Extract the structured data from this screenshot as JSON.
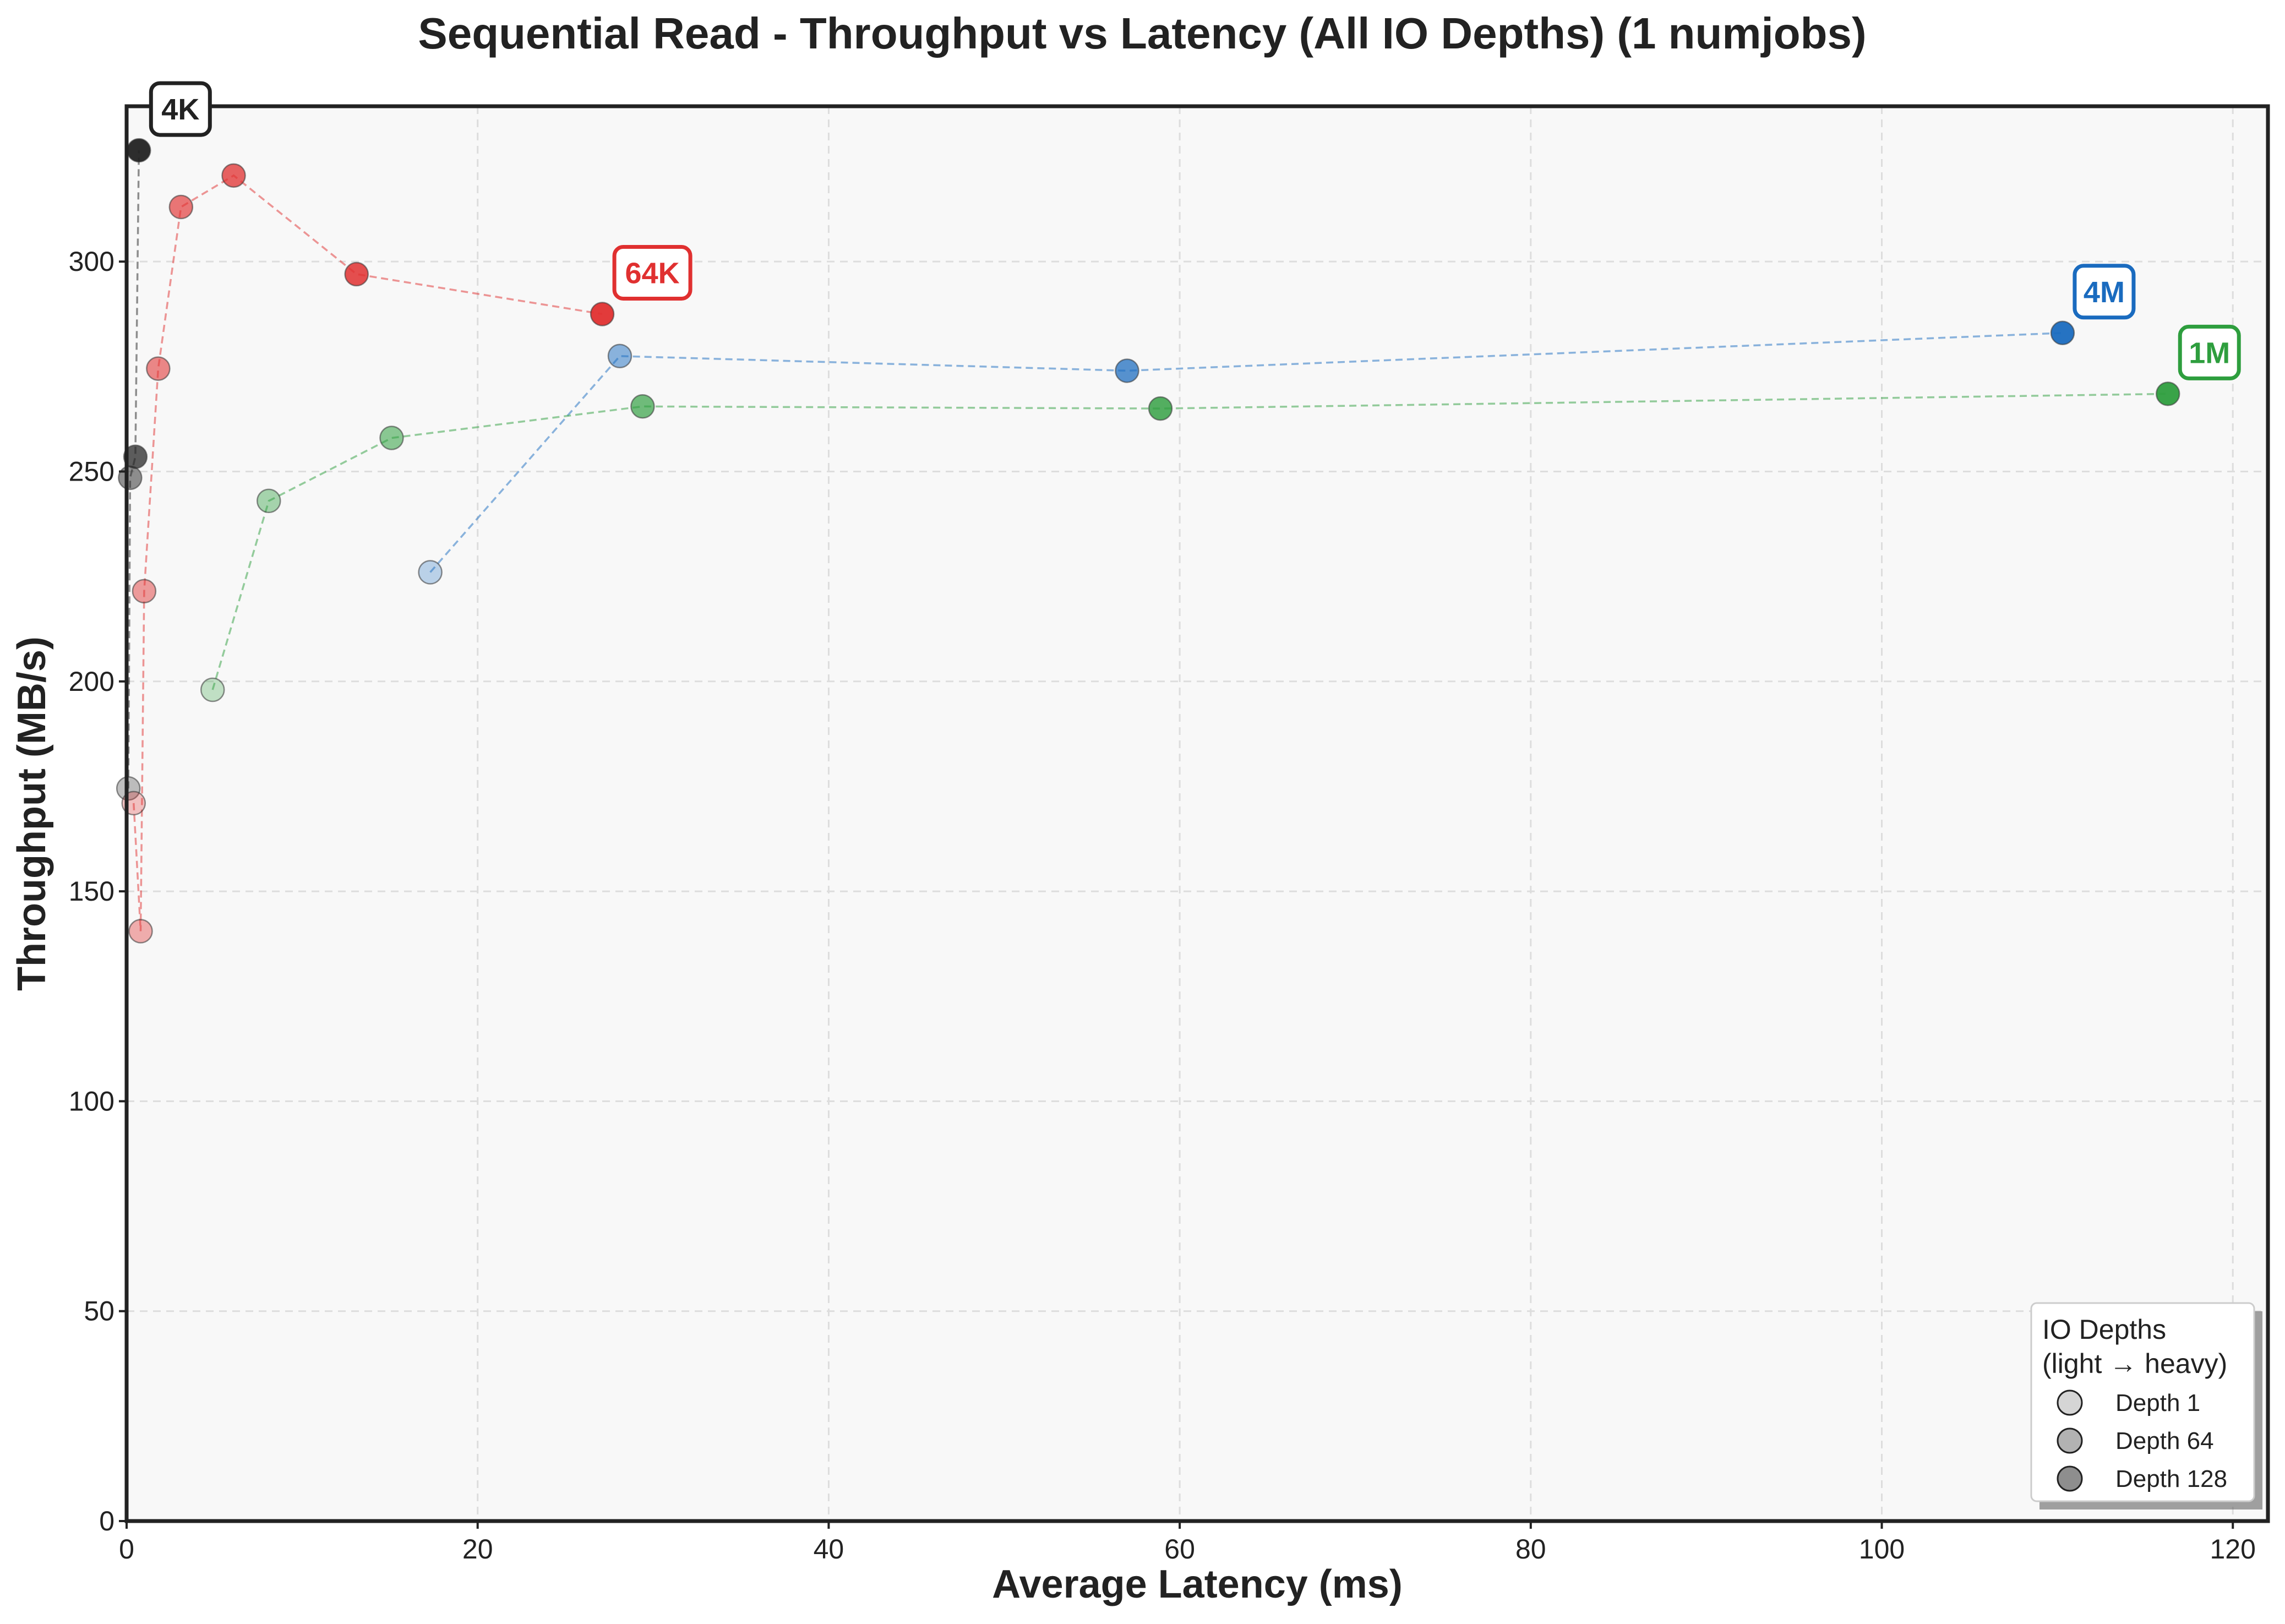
{
  "chart_data": {
    "type": "scatter",
    "title": "Sequential Read - Throughput vs Latency (All IO Depths) (1 numjobs)",
    "xlabel": "Average Latency (ms)",
    "ylabel": "Throughput (MB/s)",
    "xlim": [
      0,
      122
    ],
    "ylim": [
      0,
      337
    ],
    "xticks": [
      "0",
      "20",
      "40",
      "60",
      "80",
      "100",
      "120"
    ],
    "yticks": [
      "0",
      "50",
      "100",
      "150",
      "200",
      "250",
      "300"
    ],
    "grid": true,
    "series": [
      {
        "name": "4K",
        "color": "#222222",
        "points": [
          [
            0.1,
            174.5
          ],
          [
            0.2,
            248.5
          ],
          [
            0.5,
            253.5
          ],
          [
            0.7,
            326.5
          ]
        ]
      },
      {
        "name": "64K",
        "color": "#e03030",
        "points": [
          [
            0.4,
            171
          ],
          [
            0.8,
            140.5
          ],
          [
            1.0,
            221.5
          ],
          [
            1.8,
            274.5
          ],
          [
            3.1,
            313
          ],
          [
            6.1,
            320.5
          ],
          [
            13.1,
            297
          ],
          [
            27.1,
            287.5
          ]
        ]
      },
      {
        "name": "4M",
        "color": "#1a6bbf",
        "points": [
          [
            17.3,
            226
          ],
          [
            28.1,
            277.5
          ],
          [
            57.0,
            274
          ],
          [
            110.3,
            283
          ]
        ]
      },
      {
        "name": "1M",
        "color": "#2e9e3e",
        "points": [
          [
            4.9,
            198
          ],
          [
            8.1,
            243
          ],
          [
            15.1,
            258
          ],
          [
            29.4,
            265.5
          ],
          [
            58.9,
            265
          ],
          [
            116.3,
            268.5
          ]
        ]
      }
    ],
    "legend": {
      "position": "bottom-right",
      "title_line1": "IO Depths",
      "title_line2": "(light → heavy)",
      "items": [
        "Depth 1",
        "Depth 64",
        "Depth 128"
      ]
    }
  }
}
